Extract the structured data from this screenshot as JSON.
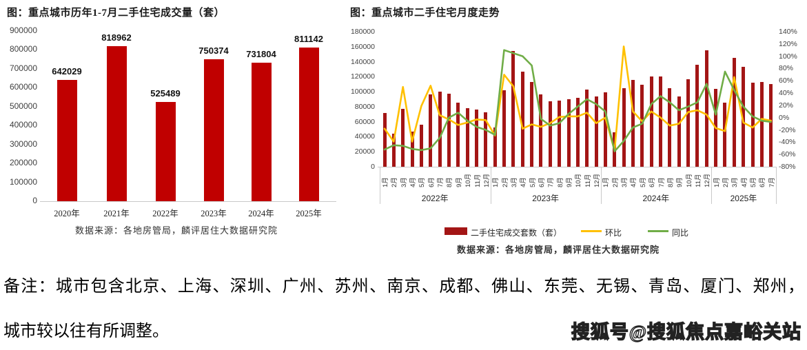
{
  "chart_data": [
    {
      "type": "bar",
      "title": "图：重点城市历年1-7月二手住宅成交量（套）",
      "categories": [
        "2020年",
        "2021年",
        "2022年",
        "2023年",
        "2024年",
        "2025年"
      ],
      "values": [
        642029,
        818962,
        525489,
        750374,
        731804,
        811142
      ],
      "bar_color": "#c00000",
      "ylim": [
        0,
        900000
      ],
      "ytick_step": 100000,
      "grid": false,
      "legend_position": "none",
      "source": "数据来源：各地房管局，麟评居住大数据研究院"
    },
    {
      "type": "bar+line",
      "title": "图：重点城市二手住宅月度走势",
      "year_groups": [
        {
          "label": "2022年",
          "months": 12
        },
        {
          "label": "2023年",
          "months": 12
        },
        {
          "label": "2024年",
          "months": 12
        },
        {
          "label": "2025年",
          "months": 7
        }
      ],
      "month_label_suffix": "月",
      "left_axis": {
        "min": 0,
        "max": 180000,
        "step": 20000
      },
      "right_axis": {
        "min": -80,
        "max": 140,
        "step": 20,
        "suffix": "%"
      },
      "grid": false,
      "legend_position": "bottom",
      "series": [
        {
          "name": "二手住宅成交套数（套）",
          "type": "bar",
          "axis": "left",
          "color": "#a31515",
          "values": [
            72000,
            44000,
            77000,
            47000,
            56000,
            96000,
            100000,
            97000,
            85000,
            78000,
            76000,
            73000,
            52000,
            102000,
            154000,
            127000,
            113000,
            96000,
            87000,
            88000,
            90000,
            92000,
            103000,
            94000,
            99000,
            46000,
            105000,
            116000,
            109000,
            120000,
            120000,
            105000,
            94000,
            117000,
            136000,
            155000,
            104000,
            85000,
            145000,
            133000,
            112000,
            113000,
            110000
          ]
        },
        {
          "name": "环比",
          "type": "line",
          "axis": "right",
          "color": "#ffc000",
          "values": [
            -18,
            -39,
            50,
            -39,
            19,
            52,
            4,
            -3,
            -12,
            -8,
            -3,
            -4,
            -29,
            70,
            51,
            -18,
            -11,
            -15,
            -9,
            1,
            2,
            2,
            8,
            -9,
            0,
            -54,
            116,
            10,
            -6,
            10,
            0,
            -13,
            -10,
            9,
            12,
            5,
            -17,
            -22,
            66,
            -8,
            -16,
            -2,
            -5
          ]
        },
        {
          "name": "同比",
          "type": "line",
          "axis": "right",
          "color": "#70ad47",
          "values": [
            -52,
            -45,
            -46,
            -51,
            -53,
            -50,
            -33,
            0,
            8,
            -5,
            -15,
            -20,
            -28,
            110,
            105,
            100,
            85,
            -2,
            -13,
            -9,
            6,
            18,
            30,
            22,
            10,
            -55,
            -38,
            -16,
            -10,
            22,
            35,
            25,
            12,
            18,
            25,
            55,
            5,
            75,
            45,
            18,
            2,
            -5,
            -7
          ]
        }
      ],
      "source": "数据来源：各地房管局，麟评居住大数据研究院"
    }
  ],
  "note": {
    "line1": "备注：城市包含北京、上海、深圳、广州、苏州、南京、成都、佛山、东莞、无锡、青岛、厦门、郑州，",
    "line2": "城市较以往有所调整。"
  },
  "watermark": "搜狐号@搜狐焦点嘉峪关站"
}
